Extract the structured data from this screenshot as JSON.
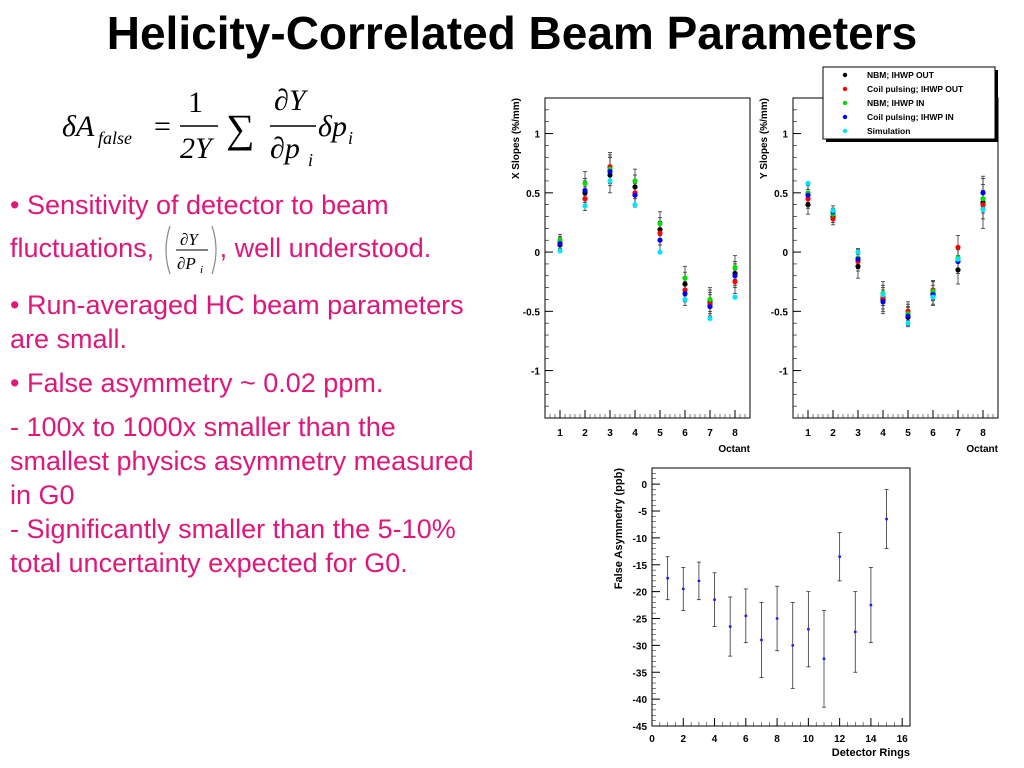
{
  "slide": {
    "title": "Helicity-Correlated Beam Parameters",
    "formula": {
      "lhs": "δA",
      "lhs_sub": "false",
      "equals": "=",
      "coef_num": "1",
      "coef_den": "2Y",
      "sum": "∑",
      "deriv_num": "∂Y",
      "deriv_den": "∂p",
      "deriv_den_sub": "i",
      "tail": "δp",
      "tail_sub": "i"
    },
    "bullets": {
      "b1_pre": "• Sensitivity of detector to beam fluctuations, ",
      "b1_frac_num": "∂Y",
      "b1_frac_den": "∂P",
      "b1_frac_sub": "i",
      "b1_post": ", well understood.",
      "b2": "• Run-averaged HC beam parameters are small.",
      "b3": "• False asymmetry ~ 0.02 ppm.",
      "b4": " -  100x to 1000x smaller than the smallest physics asymmetry measured in G0",
      "b5": " - Significantly smaller than the 5-10% total uncertainty expected for G0."
    }
  },
  "chart_data": [
    {
      "type": "scatter",
      "xlabel": "Octant",
      "ylabel": "X Slopes (%/mm)",
      "x": [
        1,
        2,
        3,
        4,
        5,
        6,
        7,
        8
      ],
      "xlim": [
        0.4,
        8.6
      ],
      "ylim": [
        -1.4,
        1.3
      ],
      "xticks": [
        "1",
        "2",
        "3",
        "4",
        "5",
        "6",
        "7",
        "8"
      ],
      "yticks": [
        "1",
        "0.5",
        "0",
        "-0.5",
        "-1"
      ],
      "ytick_values": [
        1,
        0.5,
        0,
        -0.5,
        -1
      ],
      "series": [
        {
          "name": "NBM;  IHWP OUT",
          "color": "#000000",
          "values": [
            0.06,
            0.5,
            0.65,
            0.55,
            0.19,
            -0.27,
            -0.42,
            -0.18
          ],
          "errors": [
            0.05,
            0.1,
            0.15,
            0.1,
            0.1,
            0.1,
            0.1,
            0.1
          ]
        },
        {
          "name": "Coil pulsing;  IHWP OUT",
          "color": "#ff0000",
          "values": [
            0.08,
            0.45,
            0.72,
            0.5,
            0.16,
            -0.32,
            -0.44,
            -0.25
          ],
          "errors": [
            0.05,
            0.1,
            0.12,
            0.1,
            0.1,
            0.1,
            0.1,
            0.1
          ]
        },
        {
          "name": "NBM;  IHWP IN",
          "color": "#00dd00",
          "values": [
            0.1,
            0.58,
            0.7,
            0.6,
            0.24,
            -0.22,
            -0.4,
            -0.13
          ],
          "errors": [
            0.05,
            0.1,
            0.12,
            0.1,
            0.1,
            0.1,
            0.1,
            0.1
          ]
        },
        {
          "name": "Coil pulsing;  IHWP IN",
          "color": "#0000ff",
          "values": [
            0.07,
            0.52,
            0.68,
            0.48,
            0.1,
            -0.35,
            -0.46,
            -0.2
          ],
          "errors": [
            0.05,
            0.1,
            0.12,
            0.1,
            0.1,
            0.1,
            0.1,
            0.1
          ]
        },
        {
          "name": "Simulation",
          "color": "#00e5ff",
          "values": [
            0.01,
            0.39,
            0.6,
            0.4,
            0.0,
            -0.4,
            -0.56,
            -0.38
          ],
          "errors": [
            0,
            0,
            0,
            0,
            0,
            0,
            0,
            0
          ]
        }
      ]
    },
    {
      "type": "scatter",
      "xlabel": "Octant",
      "ylabel": "Y Slopes (%/mm)",
      "x": [
        1,
        2,
        3,
        4,
        5,
        6,
        7,
        8
      ],
      "xlim": [
        0.4,
        8.6
      ],
      "ylim": [
        -1.4,
        1.3
      ],
      "xticks": [
        "1",
        "2",
        "3",
        "4",
        "5",
        "6",
        "7",
        "8"
      ],
      "yticks": [
        "1",
        "0.5",
        "0",
        "-0.5",
        "-1"
      ],
      "ytick_values": [
        1,
        0.5,
        0,
        -0.5,
        -1
      ],
      "legend_position": "top-right",
      "series": [
        {
          "name": "NBM;  IHWP OUT",
          "color": "#000000",
          "values": [
            0.4,
            0.3,
            -0.12,
            -0.4,
            -0.55,
            -0.35,
            -0.15,
            0.42
          ],
          "errors": [
            0.08,
            0.05,
            0.1,
            0.1,
            0.08,
            0.1,
            0.12,
            0.22
          ]
        },
        {
          "name": "Coil pulsing;  IHWP OUT",
          "color": "#ff0000",
          "values": [
            0.45,
            0.28,
            -0.08,
            -0.38,
            -0.5,
            -0.32,
            0.04,
            0.4
          ],
          "errors": [
            0.08,
            0.05,
            0.08,
            0.1,
            0.08,
            0.08,
            0.1,
            0.12
          ]
        },
        {
          "name": "NBM;  IHWP IN",
          "color": "#00dd00",
          "values": [
            0.5,
            0.32,
            -0.05,
            -0.35,
            -0.52,
            -0.33,
            -0.05,
            0.45
          ],
          "errors": [
            0.08,
            0.05,
            0.08,
            0.1,
            0.08,
            0.08,
            0.1,
            0.12
          ]
        },
        {
          "name": "Coil pulsing;  IHWP IN",
          "color": "#0000ff",
          "values": [
            0.48,
            0.34,
            -0.06,
            -0.42,
            -0.54,
            -0.36,
            -0.08,
            0.5
          ],
          "errors": [
            0.08,
            0.05,
            0.08,
            0.1,
            0.08,
            0.08,
            0.1,
            0.12
          ]
        },
        {
          "name": "Simulation",
          "color": "#00e5ff",
          "values": [
            0.58,
            0.35,
            0.0,
            -0.36,
            -0.6,
            -0.38,
            -0.06,
            0.36
          ],
          "errors": [
            0,
            0,
            0,
            0,
            0,
            0,
            0,
            0
          ]
        }
      ]
    },
    {
      "type": "scatter",
      "xlabel": "Detector Rings",
      "ylabel": "False Asymmetry (ppb)",
      "xlim": [
        0,
        16.5
      ],
      "ylim": [
        -45,
        3
      ],
      "xticks": [
        "0",
        "2",
        "4",
        "6",
        "8",
        "10",
        "12",
        "14",
        "16"
      ],
      "xtick_values": [
        0,
        2,
        4,
        6,
        8,
        10,
        12,
        14,
        16
      ],
      "yticks": [
        "0",
        "-5",
        "-10",
        "-15",
        "-20",
        "-25",
        "-30",
        "-35",
        "-40",
        "-45"
      ],
      "ytick_values": [
        0,
        -5,
        -10,
        -15,
        -20,
        -25,
        -30,
        -35,
        -40,
        -45
      ],
      "color": "#1a1aff",
      "x": [
        1,
        2,
        3,
        4,
        5,
        6,
        7,
        8,
        9,
        10,
        11,
        12,
        13,
        14,
        15
      ],
      "values": [
        -17.5,
        -19.5,
        -18,
        -21.5,
        -26.5,
        -24.5,
        -29,
        -25,
        -30,
        -27,
        -32.5,
        -13.5,
        -27.5,
        -22.5,
        -6.5
      ],
      "errors": [
        4,
        4,
        3.5,
        5,
        5.5,
        5,
        7,
        6,
        8,
        7,
        9,
        4.5,
        7.5,
        7,
        5.5
      ]
    }
  ]
}
